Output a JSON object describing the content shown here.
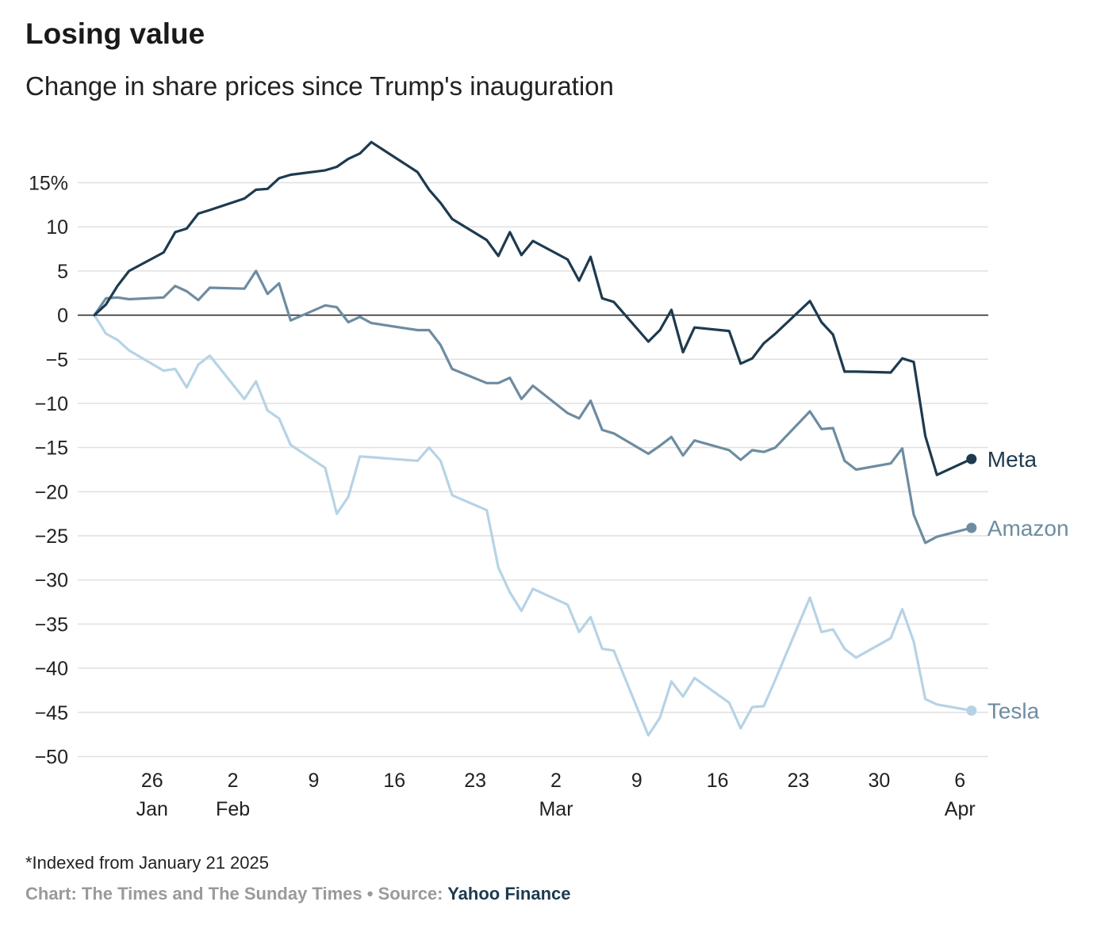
{
  "header": {
    "title": "Losing value",
    "subtitle": "Change in share prices since Trump's inauguration"
  },
  "footer": {
    "note": "*Indexed from January 21 2025",
    "credit_prefix": "Chart: The Times and The Sunday Times",
    "separator": "•",
    "source_label": "Source:",
    "source_name": "Yahoo Finance"
  },
  "colors": {
    "meta": "#1d3a4f",
    "amazon": "#6e8ca1",
    "tesla": "#b6d3e6",
    "grid": "#e0e0e0",
    "zero_line": "#222222"
  },
  "chart_data": {
    "type": "line",
    "ylim": [
      -50,
      20
    ],
    "grid": true,
    "y_ticks": [
      {
        "value": 15,
        "label": "15%"
      },
      {
        "value": 10,
        "label": "10"
      },
      {
        "value": 5,
        "label": "5"
      },
      {
        "value": 0,
        "label": "0"
      },
      {
        "value": -5,
        "label": "−5"
      },
      {
        "value": -10,
        "label": "−10"
      },
      {
        "value": -15,
        "label": "−15"
      },
      {
        "value": -20,
        "label": "−20"
      },
      {
        "value": -25,
        "label": "−25"
      },
      {
        "value": -30,
        "label": "−30"
      },
      {
        "value": -35,
        "label": "−35"
      },
      {
        "value": -40,
        "label": "−40"
      },
      {
        "value": -45,
        "label": "−45"
      },
      {
        "value": -50,
        "label": "−50"
      }
    ],
    "x_ticks": [
      {
        "date": "2025-01-26",
        "label": "26",
        "sublabel": "Jan"
      },
      {
        "date": "2025-02-02",
        "label": "2",
        "sublabel": "Feb"
      },
      {
        "date": "2025-02-09",
        "label": "9",
        "sublabel": ""
      },
      {
        "date": "2025-02-16",
        "label": "16",
        "sublabel": ""
      },
      {
        "date": "2025-02-23",
        "label": "23",
        "sublabel": ""
      },
      {
        "date": "2025-03-02",
        "label": "2",
        "sublabel": "Mar"
      },
      {
        "date": "2025-03-09",
        "label": "9",
        "sublabel": ""
      },
      {
        "date": "2025-03-16",
        "label": "16",
        "sublabel": ""
      },
      {
        "date": "2025-03-23",
        "label": "23",
        "sublabel": ""
      },
      {
        "date": "2025-03-30",
        "label": "30",
        "sublabel": ""
      },
      {
        "date": "2025-04-06",
        "label": "6",
        "sublabel": "Apr"
      }
    ],
    "x": [
      "2025-01-21",
      "2025-01-22",
      "2025-01-23",
      "2025-01-24",
      "2025-01-27",
      "2025-01-28",
      "2025-01-29",
      "2025-01-30",
      "2025-01-31",
      "2025-02-03",
      "2025-02-04",
      "2025-02-05",
      "2025-02-06",
      "2025-02-07",
      "2025-02-10",
      "2025-02-11",
      "2025-02-12",
      "2025-02-13",
      "2025-02-14",
      "2025-02-18",
      "2025-02-19",
      "2025-02-20",
      "2025-02-21",
      "2025-02-24",
      "2025-02-25",
      "2025-02-26",
      "2025-02-27",
      "2025-02-28",
      "2025-03-03",
      "2025-03-04",
      "2025-03-05",
      "2025-03-06",
      "2025-03-07",
      "2025-03-10",
      "2025-03-11",
      "2025-03-12",
      "2025-03-13",
      "2025-03-14",
      "2025-03-17",
      "2025-03-18",
      "2025-03-19",
      "2025-03-20",
      "2025-03-21",
      "2025-03-24",
      "2025-03-25",
      "2025-03-26",
      "2025-03-27",
      "2025-03-28",
      "2025-03-31",
      "2025-04-01",
      "2025-04-02",
      "2025-04-03",
      "2025-04-04",
      "2025-04-07"
    ],
    "series": [
      {
        "name": "Meta",
        "color": "#1d3a4f",
        "values": [
          0,
          1.2,
          3.3,
          5.0,
          7.1,
          9.4,
          9.8,
          11.5,
          11.9,
          13.2,
          14.2,
          14.3,
          15.5,
          15.9,
          16.4,
          16.8,
          17.7,
          18.3,
          19.6,
          16.2,
          14.2,
          12.7,
          10.9,
          8.5,
          6.7,
          9.4,
          6.8,
          8.4,
          6.3,
          3.9,
          6.6,
          1.9,
          1.5,
          -3.0,
          -1.7,
          0.6,
          -4.2,
          -1.4,
          -1.8,
          -5.5,
          -4.9,
          -3.2,
          -2.1,
          1.6,
          -0.8,
          -2.2,
          -6.4,
          -6.4,
          -6.5,
          -4.9,
          -5.3,
          -13.7,
          -18.1,
          -16.3
        ]
      },
      {
        "name": "Amazon",
        "color": "#6e8ca1",
        "values": [
          0,
          1.9,
          2.0,
          1.8,
          2.0,
          3.3,
          2.7,
          1.7,
          3.1,
          3.0,
          5.0,
          2.4,
          3.6,
          -0.6,
          1.1,
          0.9,
          -0.8,
          -0.2,
          -0.9,
          -1.7,
          -1.7,
          -3.4,
          -6.1,
          -7.7,
          -7.7,
          -7.1,
          -9.5,
          -8.0,
          -11.1,
          -11.7,
          -9.7,
          -13.0,
          -13.4,
          -15.7,
          -14.8,
          -13.8,
          -15.9,
          -14.2,
          -15.3,
          -16.4,
          -15.3,
          -15.5,
          -15.0,
          -10.9,
          -12.9,
          -12.8,
          -16.5,
          -17.5,
          -16.8,
          -15.1,
          -22.6,
          -25.8,
          -25.1,
          -24.1
        ]
      },
      {
        "name": "Tesla",
        "color": "#b6d3e6",
        "values": [
          0,
          -2.1,
          -2.8,
          -4.0,
          -6.3,
          -6.1,
          -8.2,
          -5.6,
          -4.6,
          -9.5,
          -7.5,
          -10.8,
          -11.7,
          -14.7,
          -17.3,
          -22.5,
          -20.6,
          -16.0,
          -16.1,
          -16.5,
          -15.0,
          -16.5,
          -20.4,
          -22.1,
          -28.6,
          -31.4,
          -33.5,
          -31.0,
          -32.8,
          -35.9,
          -34.2,
          -37.8,
          -38.0,
          -47.6,
          -45.6,
          -41.5,
          -43.2,
          -41.1,
          -43.9,
          -46.8,
          -44.4,
          -44.3,
          -41.3,
          -32.0,
          -35.9,
          -35.6,
          -37.8,
          -38.8,
          -36.6,
          -33.3,
          -37.0,
          -43.5,
          -44.1,
          -44.8
        ]
      }
    ]
  }
}
